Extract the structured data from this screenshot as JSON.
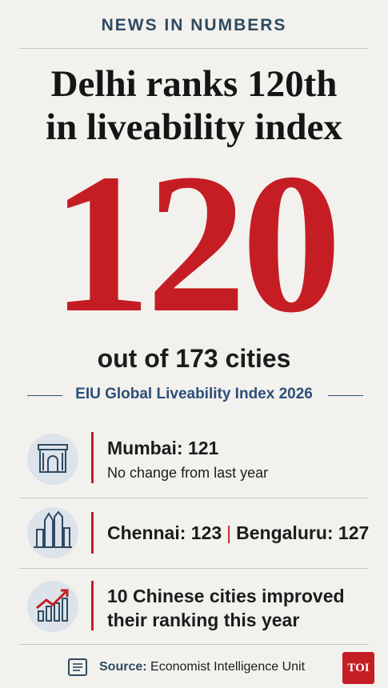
{
  "header": {
    "kicker": "NEWS IN NUMBERS",
    "headline": [
      "Delhi ranks 120th",
      "in liveability index"
    ]
  },
  "highlight": {
    "number": "120",
    "caption": "out of 173 cities",
    "index_name": "EIU Global Liveability Index 2026"
  },
  "items": [
    {
      "lines": [
        "Mumbai: 121",
        "No change from last year"
      ]
    },
    {
      "lines": [
        "Chennai: 123",
        "Bengaluru: 127"
      ]
    },
    {
      "lines": [
        "10 Chinese cities improved",
        "their ranking this year"
      ]
    }
  ],
  "footer": {
    "source_label": "Source:",
    "source": "Economist Intelligence Unit",
    "brand": "TOI"
  }
}
